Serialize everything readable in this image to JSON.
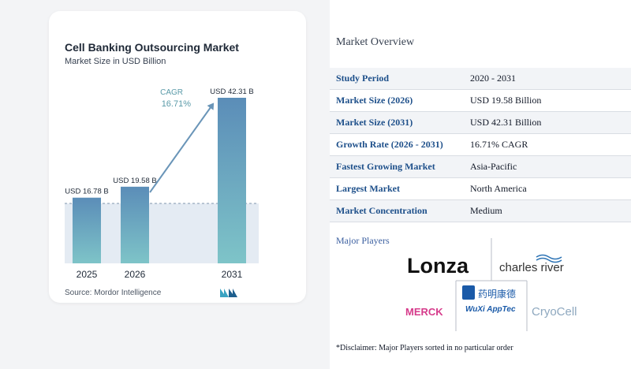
{
  "chart_data": {
    "type": "bar",
    "title": "Cell Banking Outsourcing Market",
    "subtitle": "Market Size in USD Billion",
    "categories": [
      "2025",
      "2026",
      "2031"
    ],
    "values": [
      16.78,
      19.58,
      42.31
    ],
    "value_labels": [
      "USD 16.78 B",
      "USD 19.58 B",
      "USD 42.31 B"
    ],
    "cagr_label": "CAGR",
    "cagr_value": "16.71%",
    "ylim": [
      0,
      45
    ],
    "grid": false,
    "bar_color_top": "#5b8db8",
    "bar_color_bottom": "#7ec4c8"
  },
  "source": "Source: Mordor Intelligence",
  "overview": {
    "title": "Market Overview",
    "rows": [
      {
        "label": "Study Period",
        "value": "2020 - 2031"
      },
      {
        "label": "Market Size (2026)",
        "value": "USD 19.58 Billion"
      },
      {
        "label": "Market Size (2031)",
        "value": "USD 42.31 Billion"
      },
      {
        "label": "Growth Rate (2026 - 2031)",
        "value": "16.71% CAGR"
      },
      {
        "label": "Fastest Growing Market",
        "value": "Asia-Pacific"
      },
      {
        "label": "Largest Market",
        "value": "North America"
      },
      {
        "label": "Market Concentration",
        "value": "Medium"
      }
    ],
    "players_title": "Major Players",
    "players": [
      "Lonza",
      "charles river",
      "MERCK",
      "WuXi AppTec",
      "CryoCell"
    ],
    "wuxi_chinese": "药明康德",
    "disclaimer": "*Disclaimer: Major Players sorted in no particular order"
  }
}
